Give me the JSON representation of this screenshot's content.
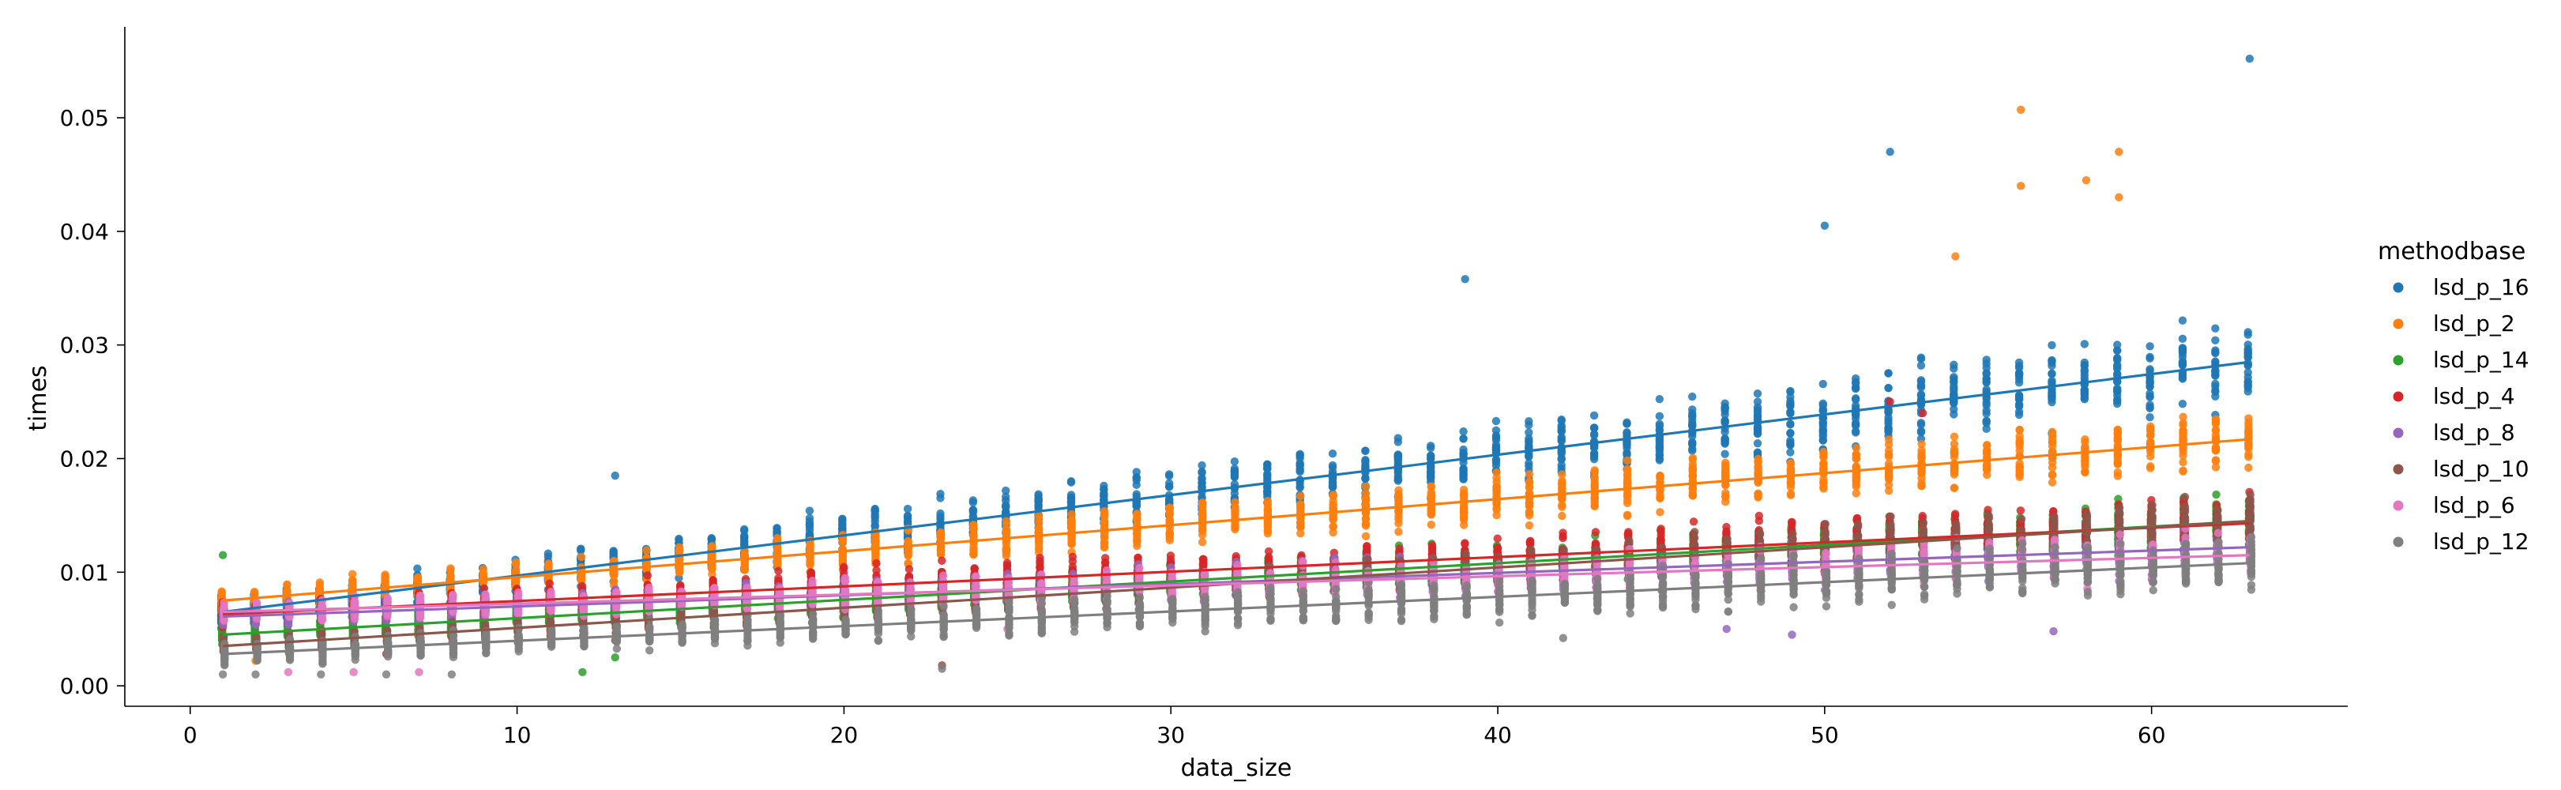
{
  "chart_data": {
    "type": "scatter",
    "xlabel": "data_size",
    "ylabel": "times",
    "xlim": [
      -2,
      66
    ],
    "ylim": [
      -0.0018,
      0.058
    ],
    "xticks": [
      0,
      10,
      20,
      30,
      40,
      50,
      60
    ],
    "yticks": [
      0.0,
      0.01,
      0.02,
      0.03,
      0.04,
      0.05
    ],
    "ytick_labels": [
      "0.00",
      "0.01",
      "0.02",
      "0.03",
      "0.04",
      "0.05"
    ],
    "x_range": [
      1,
      63
    ],
    "grid": false,
    "legend": {
      "title": "methodbase",
      "placement": "right"
    },
    "series": [
      {
        "name": "lsd_p_16",
        "color": "#1f77b4",
        "fit": [
          0.0065,
          0.0285
        ],
        "spread": 0.0035,
        "outliers": [
          [
            13,
            0.0185
          ],
          [
            39,
            0.0358
          ],
          [
            50,
            0.0405
          ],
          [
            52,
            0.047
          ],
          [
            63,
            0.0552
          ]
        ]
      },
      {
        "name": "lsd_p_2",
        "color": "#ff7f0e",
        "fit": [
          0.0075,
          0.0217
        ],
        "spread": 0.0025,
        "outliers": [
          [
            56,
            0.0507
          ],
          [
            56,
            0.044
          ],
          [
            58,
            0.0445
          ],
          [
            59,
            0.047
          ],
          [
            59,
            0.043
          ],
          [
            54,
            0.0378
          ],
          [
            2,
            0.0022
          ]
        ]
      },
      {
        "name": "lsd_p_14",
        "color": "#2ca02c",
        "fit": [
          0.0045,
          0.0145
        ],
        "spread": 0.0022,
        "outliers": [
          [
            1,
            0.0115
          ],
          [
            13,
            0.0025
          ],
          [
            12,
            0.0012
          ]
        ]
      },
      {
        "name": "lsd_p_4",
        "color": "#d62728",
        "fit": [
          0.0063,
          0.0143
        ],
        "spread": 0.0025,
        "outliers": [
          [
            6,
            0.0028
          ],
          [
            52,
            0.025
          ],
          [
            53,
            0.024
          ]
        ]
      },
      {
        "name": "lsd_p_8",
        "color": "#9467bd",
        "fit": [
          0.0061,
          0.0122
        ],
        "spread": 0.0022,
        "outliers": [
          [
            49,
            0.0045
          ],
          [
            57,
            0.0048
          ],
          [
            47,
            0.005
          ]
        ]
      },
      {
        "name": "lsd_p_10",
        "color": "#8c564b",
        "fit": [
          0.0035,
          0.0145
        ],
        "spread": 0.002,
        "outliers": [
          [
            23,
            0.0018
          ],
          [
            13,
            0.004
          ]
        ]
      },
      {
        "name": "lsd_p_6",
        "color": "#e377c2",
        "fit": [
          0.0065,
          0.0115
        ],
        "spread": 0.002,
        "outliers": [
          [
            3,
            0.0012
          ],
          [
            5,
            0.0012
          ],
          [
            7,
            0.0012
          ],
          [
            25,
            0.005
          ]
        ]
      },
      {
        "name": "lsd_p_12",
        "color": "#7f7f7f",
        "fit": [
          0.0028,
          0.0108
        ],
        "spread": 0.0022,
        "outliers": [
          [
            1,
            0.001
          ],
          [
            2,
            0.001
          ],
          [
            4,
            0.001
          ],
          [
            6,
            0.001
          ],
          [
            8,
            0.001
          ],
          [
            23,
            0.0015
          ],
          [
            42,
            0.0042
          ]
        ]
      }
    ]
  }
}
